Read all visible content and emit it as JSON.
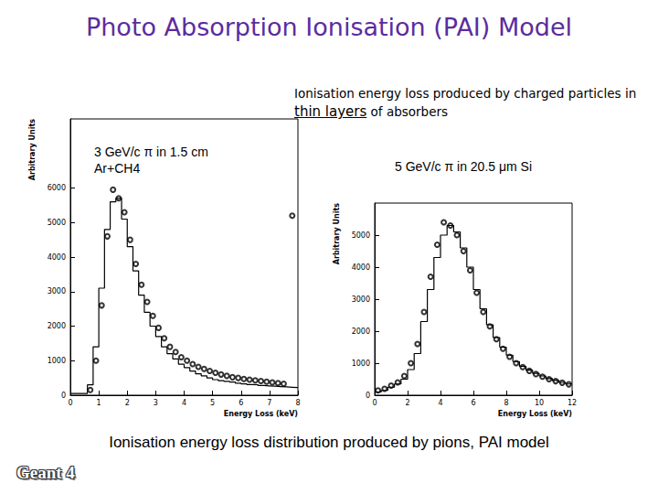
{
  "slide": {
    "title": "Photo Absorption Ionisation (PAI) Model",
    "subtitle": "Ionisation energy loss produced by charged particles in thin layers of absorbers",
    "subtitle_emphasis": "thin layers",
    "caption": "Ionisation energy loss distribution produced by pions, PAI model",
    "logo": "Geant 4"
  },
  "chart_data": [
    {
      "type": "histogram",
      "title": "3 GeV/c π in 1.5 cm Ar+CH4",
      "x_label": "Energy Loss (keV)",
      "y_label": "Arbitrary Units",
      "xlim": [
        0,
        8
      ],
      "xticks": [
        0,
        1,
        2,
        3,
        4,
        5,
        6,
        7,
        8
      ],
      "ylim": [
        0,
        8000
      ],
      "yticks": [
        0,
        1000,
        2000,
        3000,
        4000,
        5000,
        6000
      ],
      "grid": false,
      "series": [
        {
          "type": "histogram",
          "color": "#000000",
          "bins": [
            0,
            0.2,
            0.4,
            0.6,
            0.8,
            1.0,
            1.2,
            1.4,
            1.6,
            1.8,
            2.0,
            2.2,
            2.4,
            2.6,
            2.8,
            3.0,
            3.2,
            3.4,
            3.6,
            3.8,
            4.0,
            4.2,
            4.4,
            4.6,
            4.8,
            5.0,
            5.2,
            5.4,
            5.6,
            5.8,
            6.0,
            6.2,
            6.4,
            6.6,
            6.8,
            7.0,
            7.2,
            7.4,
            7.6,
            7.8,
            8.0
          ],
          "values": [
            50,
            50,
            50,
            300,
            1400,
            3100,
            4800,
            5600,
            5700,
            5100,
            4300,
            3600,
            2900,
            2400,
            2000,
            1700,
            1400,
            1200,
            1050,
            900,
            800,
            700,
            620,
            560,
            500,
            450,
            420,
            400,
            380,
            350,
            330,
            310,
            300,
            280,
            270,
            260,
            250,
            240,
            230,
            220
          ]
        },
        {
          "type": "scatter",
          "marker": "circle",
          "color": "#000000",
          "x": [
            0.7,
            0.9,
            1.1,
            1.3,
            1.5,
            1.7,
            1.9,
            2.1,
            2.3,
            2.5,
            2.7,
            2.9,
            3.1,
            3.3,
            3.5,
            3.7,
            3.9,
            4.1,
            4.3,
            4.5,
            4.7,
            4.9,
            5.1,
            5.3,
            5.5,
            5.7,
            5.9,
            6.1,
            6.3,
            6.5,
            6.7,
            6.9,
            7.1,
            7.3,
            7.5,
            7.8
          ],
          "values": [
            150,
            1000,
            2600,
            4600,
            5950,
            5700,
            5300,
            4500,
            3800,
            3200,
            2700,
            2300,
            1950,
            1650,
            1400,
            1250,
            1100,
            1000,
            900,
            820,
            760,
            700,
            650,
            600,
            560,
            520,
            500,
            470,
            450,
            430,
            410,
            390,
            370,
            350,
            330,
            5200
          ]
        }
      ]
    },
    {
      "type": "histogram",
      "title": "5 GeV/c π in 20.5 μm Si",
      "x_label": "Energy Loss (keV)",
      "y_label": "Arbitrary Units",
      "xlim": [
        0,
        12
      ],
      "xticks": [
        0,
        2,
        4,
        6,
        8,
        10,
        12
      ],
      "ylim": [
        0,
        6000
      ],
      "yticks": [
        0,
        1000,
        2000,
        3000,
        4000,
        5000
      ],
      "grid": false,
      "series": [
        {
          "type": "histogram",
          "color": "#000000",
          "bins": [
            0,
            0.4,
            0.8,
            1.2,
            1.6,
            2.0,
            2.4,
            2.8,
            3.2,
            3.6,
            4.0,
            4.4,
            4.8,
            5.2,
            5.6,
            6.0,
            6.4,
            6.8,
            7.2,
            7.6,
            8.0,
            8.4,
            8.8,
            9.2,
            9.6,
            10.0,
            10.4,
            10.8,
            11.2,
            11.6,
            12.0
          ],
          "values": [
            100,
            150,
            250,
            350,
            500,
            800,
            1300,
            2300,
            3300,
            4300,
            5000,
            5300,
            5100,
            4600,
            4000,
            3300,
            2700,
            2200,
            1800,
            1500,
            1250,
            1050,
            900,
            780,
            680,
            600,
            520,
            460,
            400,
            350
          ]
        },
        {
          "type": "scatter",
          "marker": "circle",
          "color": "#000000",
          "x": [
            0.2,
            0.6,
            1.0,
            1.4,
            1.8,
            2.2,
            2.6,
            3.0,
            3.4,
            3.8,
            4.2,
            4.6,
            5.0,
            5.4,
            5.8,
            6.2,
            6.6,
            7.0,
            7.4,
            7.8,
            8.2,
            8.6,
            9.0,
            9.4,
            9.8,
            10.2,
            10.6,
            11.0,
            11.4,
            11.8
          ],
          "values": [
            150,
            200,
            300,
            400,
            600,
            1000,
            1600,
            2600,
            3700,
            4700,
            5400,
            5300,
            5000,
            4500,
            3900,
            3200,
            2600,
            2150,
            1750,
            1450,
            1200,
            1000,
            880,
            760,
            660,
            580,
            500,
            440,
            390,
            340
          ]
        }
      ]
    }
  ]
}
